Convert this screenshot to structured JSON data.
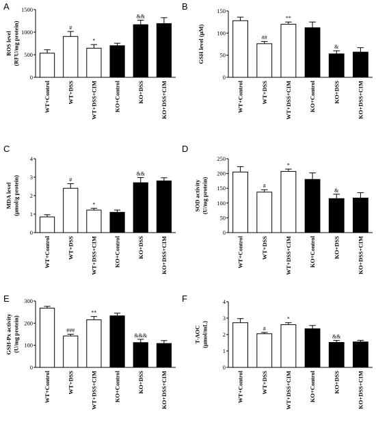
{
  "chart_data": [
    {
      "type": "bar",
      "panel": "A",
      "ylabel_lines": [
        "ROS level",
        "(RFU/mg protein)"
      ],
      "ylim": [
        0,
        1500
      ],
      "yticks": [
        0,
        500,
        1000,
        1500
      ],
      "categories": [
        "WT+Control",
        "WT+DSS",
        "WT+DSS+CIM",
        "KO+Control",
        "KO+DSS",
        "KO+DSS+CIM"
      ],
      "values": [
        535,
        905,
        645,
        700,
        1165,
        1190
      ],
      "errors": [
        75,
        110,
        80,
        55,
        100,
        130
      ],
      "annotations": [
        "",
        "#",
        "*",
        "",
        "&&",
        ""
      ],
      "bar_fill": [
        "white",
        "white",
        "white",
        "black",
        "black",
        "black"
      ]
    },
    {
      "type": "bar",
      "panel": "B",
      "ylabel_lines": [
        "GSH level (μM)"
      ],
      "ylim": [
        0,
        150
      ],
      "yticks": [
        0,
        50,
        100,
        150
      ],
      "categories": [
        "WT+Control",
        "WT+DSS",
        "WT+DSS+CIM",
        "KO+Control",
        "KO+DSS",
        "KO+DSS+CIM"
      ],
      "values": [
        128,
        76,
        120,
        112,
        53,
        57
      ],
      "errors": [
        8,
        5,
        5,
        13,
        7,
        10
      ],
      "annotations": [
        "",
        "##",
        "**",
        "",
        "&",
        ""
      ],
      "bar_fill": [
        "white",
        "white",
        "white",
        "black",
        "black",
        "black"
      ]
    },
    {
      "type": "bar",
      "panel": "C",
      "ylabel_lines": [
        "MDA level",
        "(μmol/g protein)"
      ],
      "ylim": [
        0,
        4
      ],
      "yticks": [
        0,
        1,
        2,
        3,
        4
      ],
      "categories": [
        "WT+Control",
        "WT+DSS",
        "WT+DSS+CIM",
        "KO+Control",
        "KO+DSS",
        "KO+DSS+CIM"
      ],
      "values": [
        0.85,
        2.4,
        1.22,
        1.1,
        2.7,
        2.8
      ],
      "errors": [
        0.12,
        0.25,
        0.1,
        0.12,
        0.28,
        0.17
      ],
      "annotations": [
        "",
        "#",
        "*",
        "",
        "&&",
        ""
      ],
      "bar_fill": [
        "white",
        "white",
        "white",
        "black",
        "black",
        "black"
      ]
    },
    {
      "type": "bar",
      "panel": "D",
      "ylabel_lines": [
        "SOD activity",
        "(U/mg protein)"
      ],
      "ylim": [
        0,
        250
      ],
      "yticks": [
        0,
        50,
        100,
        150,
        200,
        250
      ],
      "categories": [
        "WT+Control",
        "WT+DSS",
        "WT+DSS+CIM",
        "KO+Control",
        "KO+DSS",
        "KO+DSS+CIM"
      ],
      "values": [
        205,
        137,
        207,
        180,
        115,
        117
      ],
      "errors": [
        18,
        8,
        8,
        22,
        15,
        18
      ],
      "annotations": [
        "",
        "#",
        "*",
        "",
        "&",
        ""
      ],
      "bar_fill": [
        "white",
        "white",
        "white",
        "black",
        "black",
        "black"
      ]
    },
    {
      "type": "bar",
      "panel": "E",
      "ylabel_lines": [
        "GSH-Px activity",
        "(U/mg protein)"
      ],
      "ylim": [
        0,
        300
      ],
      "yticks": [
        0,
        100,
        200,
        300
      ],
      "categories": [
        "WT+Control",
        "WT+DSS",
        "WT+DSS+CIM",
        "KO+Control",
        "KO+DSS",
        "KO+DSS+CIM"
      ],
      "values": [
        268,
        142,
        215,
        233,
        112,
        108
      ],
      "errors": [
        8,
        8,
        15,
        12,
        15,
        13
      ],
      "annotations": [
        "",
        "###",
        "**",
        "",
        "&&&",
        ""
      ],
      "bar_fill": [
        "white",
        "white",
        "white",
        "black",
        "black",
        "black"
      ]
    },
    {
      "type": "bar",
      "panel": "F",
      "ylabel_lines": [
        "T-AOC",
        "(μmol/mL)"
      ],
      "ylim": [
        0,
        4
      ],
      "yticks": [
        0,
        1,
        2,
        3,
        4
      ],
      "categories": [
        "WT+Control",
        "WT+DSS",
        "WT+DSS+CIM",
        "KO+Control",
        "KO+DSS",
        "KO+DSS+CIM"
      ],
      "values": [
        2.72,
        2.05,
        2.6,
        2.35,
        1.52,
        1.55
      ],
      "errors": [
        0.25,
        0.08,
        0.12,
        0.2,
        0.12,
        0.1
      ],
      "annotations": [
        "",
        "#",
        "*",
        "",
        "&&",
        ""
      ],
      "bar_fill": [
        "white",
        "white",
        "white",
        "black",
        "black",
        "black"
      ]
    }
  ]
}
